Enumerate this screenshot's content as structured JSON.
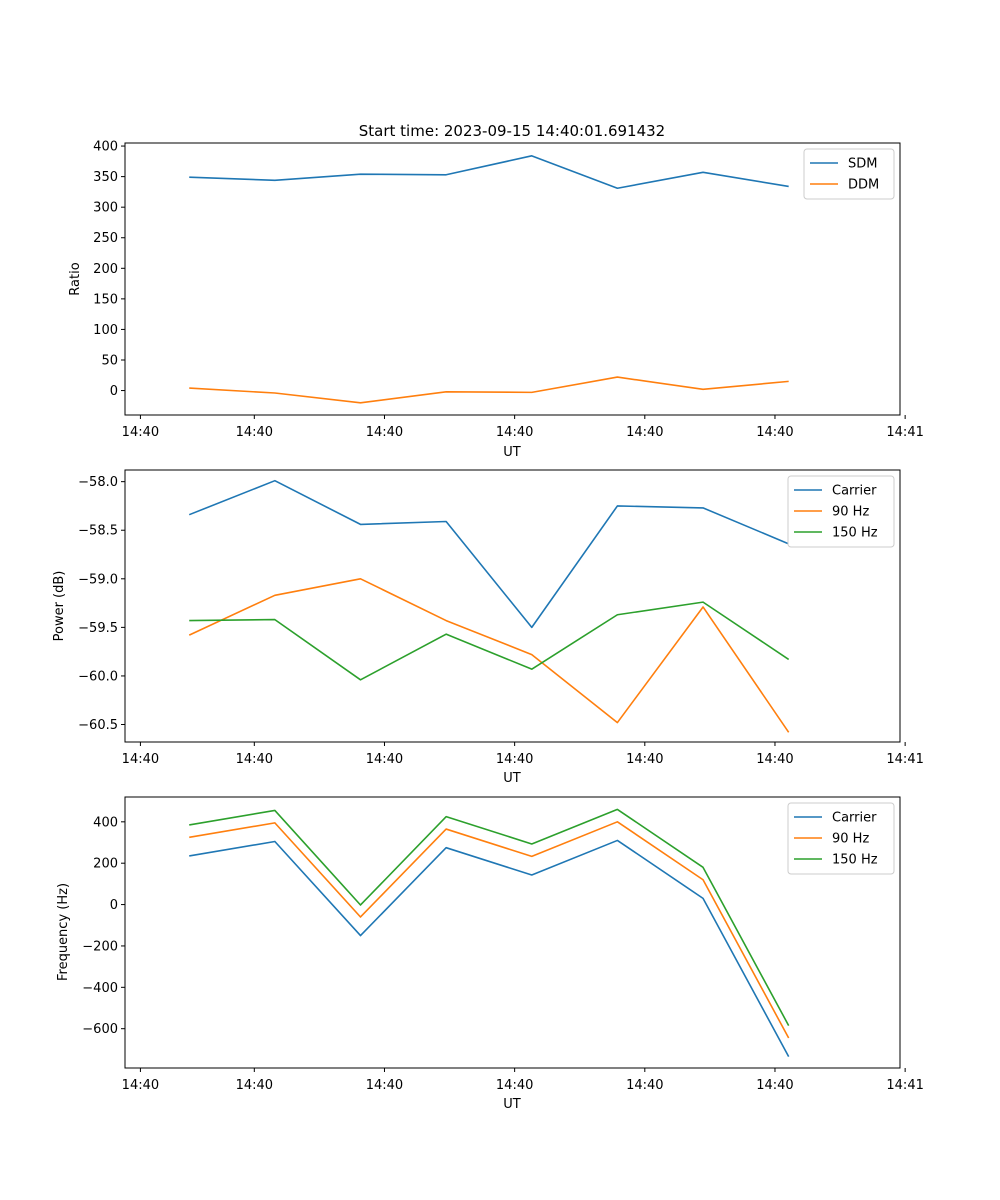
{
  "chart_data": [
    {
      "type": "line",
      "title": "Start time: 2023-09-15 14:40:01.691432",
      "xlabel": "UT",
      "ylabel": "Ratio",
      "x": [
        0,
        1,
        2,
        3,
        4,
        5,
        6,
        7
      ],
      "xlim": [
        -0.75,
        8.3
      ],
      "ylim": [
        -40,
        405
      ],
      "yticks": [
        0,
        50,
        100,
        150,
        200,
        250,
        300,
        350,
        400
      ],
      "ytick_labels": [
        "0",
        "50",
        "100",
        "150",
        "200",
        "250",
        "300",
        "350",
        "400"
      ],
      "xticks": [
        -0.57,
        0.76,
        2.28,
        3.8,
        5.32,
        6.84,
        8.36
      ],
      "xtick_labels": [
        "14:40",
        "14:40",
        "14:40",
        "14:40",
        "14:40",
        "14:40",
        "14:41"
      ],
      "legend": "top-right",
      "series": [
        {
          "name": "SDM",
          "color": "#1f77b4",
          "values": [
            349,
            344,
            354,
            353,
            384,
            331,
            357,
            334
          ]
        },
        {
          "name": "DDM",
          "color": "#ff7f0e",
          "values": [
            4,
            -4,
            -20,
            -2,
            -3,
            22,
            2,
            15
          ]
        }
      ]
    },
    {
      "type": "line",
      "title": "",
      "xlabel": "UT",
      "ylabel": "Power (dB)",
      "x": [
        0,
        1,
        2,
        3,
        4,
        5,
        6,
        7
      ],
      "xlim": [
        -0.75,
        8.3
      ],
      "ylim": [
        -60.68,
        -57.88
      ],
      "yticks": [
        -60.5,
        -60.0,
        -59.5,
        -59.0,
        -58.5,
        -58.0
      ],
      "ytick_labels": [
        "−60.5",
        "−60.0",
        "−59.5",
        "−59.0",
        "−58.5",
        "−58.0"
      ],
      "xticks": [
        -0.57,
        0.76,
        2.28,
        3.8,
        5.32,
        6.84,
        8.36
      ],
      "xtick_labels": [
        "14:40",
        "14:40",
        "14:40",
        "14:40",
        "14:40",
        "14:40",
        "14:41"
      ],
      "legend": "top-right",
      "series": [
        {
          "name": "Carrier",
          "color": "#1f77b4",
          "values": [
            -58.34,
            -57.99,
            -58.44,
            -58.41,
            -59.5,
            -58.25,
            -58.27,
            -58.64
          ]
        },
        {
          "name": "90 Hz",
          "color": "#ff7f0e",
          "values": [
            -59.58,
            -59.17,
            -59.0,
            -59.43,
            -59.78,
            -60.48,
            -59.29,
            -60.58
          ]
        },
        {
          "name": "150 Hz",
          "color": "#2ca02c",
          "values": [
            -59.43,
            -59.42,
            -60.04,
            -59.57,
            -59.93,
            -59.37,
            -59.24,
            -59.83
          ]
        }
      ]
    },
    {
      "type": "line",
      "title": "",
      "xlabel": "UT",
      "ylabel": "Frequency (Hz)",
      "x": [
        0,
        1,
        2,
        3,
        4,
        5,
        6,
        7
      ],
      "xlim": [
        -0.75,
        8.3
      ],
      "ylim": [
        -790,
        520
      ],
      "yticks": [
        -600,
        -400,
        -200,
        0,
        200,
        400
      ],
      "ytick_labels": [
        "−600",
        "−400",
        "−200",
        "0",
        "200",
        "400"
      ],
      "xticks": [
        -0.57,
        0.76,
        2.28,
        3.8,
        5.32,
        6.84,
        8.36
      ],
      "xtick_labels": [
        "14:40",
        "14:40",
        "14:40",
        "14:40",
        "14:40",
        "14:40",
        "14:41"
      ],
      "legend": "top-right",
      "series": [
        {
          "name": "Carrier",
          "color": "#1f77b4",
          "values": [
            235,
            305,
            -150,
            275,
            143,
            310,
            30,
            -735
          ]
        },
        {
          "name": "90 Hz",
          "color": "#ff7f0e",
          "values": [
            325,
            395,
            -60,
            365,
            233,
            400,
            120,
            -645
          ]
        },
        {
          "name": "150 Hz",
          "color": "#2ca02c",
          "values": [
            385,
            455,
            -2,
            425,
            293,
            460,
            180,
            -585
          ]
        }
      ]
    }
  ]
}
